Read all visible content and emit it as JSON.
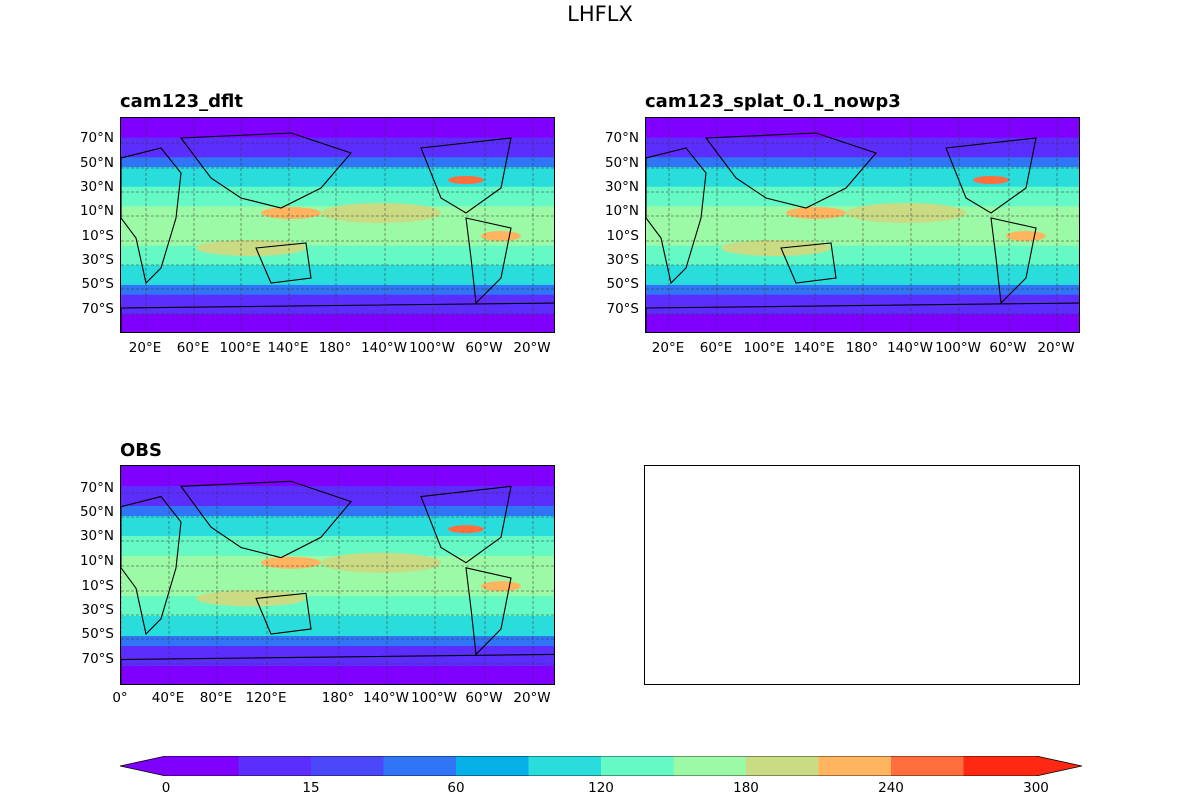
{
  "figure": {
    "title": "LHFLX"
  },
  "panels": [
    {
      "title": "cam123_dflt",
      "lat_labels": [
        "70°N",
        "50°N",
        "30°N",
        "10°N",
        "10°S",
        "30°S",
        "50°S",
        "70°S"
      ],
      "lon_labels": [
        "20°E",
        "60°E",
        "100°E",
        "140°E",
        "180°",
        "140°W",
        "100°W",
        "60°W",
        "20°W"
      ]
    },
    {
      "title": "cam123_splat_0.1_nowp3",
      "lat_labels": [
        "70°N",
        "50°N",
        "30°N",
        "10°N",
        "10°S",
        "30°S",
        "50°S",
        "70°S"
      ],
      "lon_labels": [
        "20°E",
        "60°E",
        "100°E",
        "140°E",
        "180°",
        "140°W",
        "100°W",
        "60°W",
        "20°W"
      ]
    },
    {
      "title": "OBS",
      "lat_labels": [
        "70°N",
        "50°N",
        "30°N",
        "10°N",
        "10°S",
        "30°S",
        "50°S",
        "70°S"
      ],
      "lon_labels": [
        "0°",
        "40°E",
        "80°E",
        "120°E",
        "180°",
        "140°W",
        "100°W",
        "60°W",
        "20°W"
      ]
    }
  ],
  "colorbar": {
    "ticks": [
      "0",
      "15",
      "60",
      "120",
      "180",
      "240",
      "300"
    ],
    "colors": [
      "#7f00ff",
      "#5c2dff",
      "#4b47fb",
      "#3075f6",
      "#06b1e9",
      "#2adddd",
      "#64f9c5",
      "#9cf9a5",
      "#c9dc84",
      "#ffb460",
      "#ff6e3c",
      "#ff2812"
    ]
  }
}
